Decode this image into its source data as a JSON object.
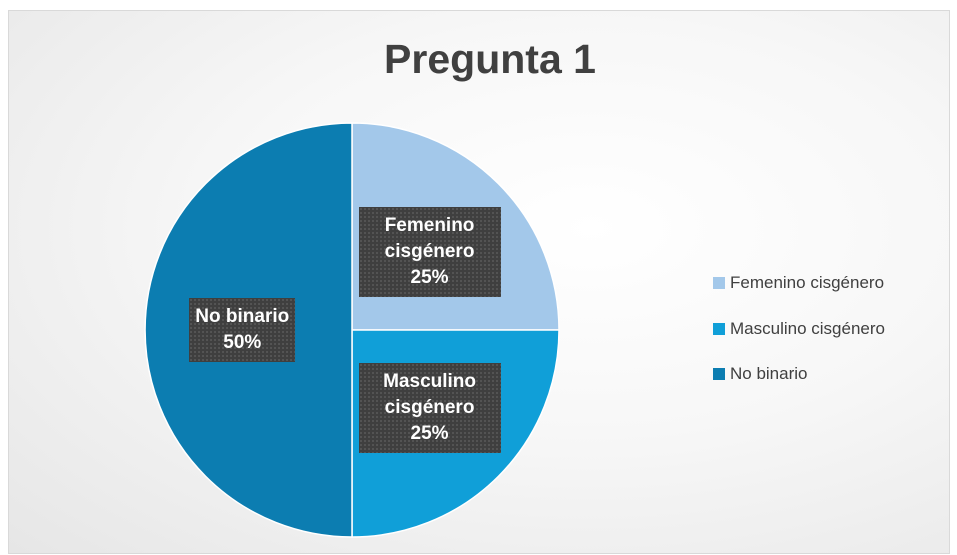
{
  "chart_data": {
    "type": "pie",
    "title": "Pregunta 1",
    "categories": [
      "Femenino cisgénero",
      "Masculino cisgénero",
      "No binario"
    ],
    "values": [
      25,
      25,
      50
    ],
    "value_labels": [
      "25%",
      "25%",
      "50%"
    ],
    "colors": [
      "#a3c8ea",
      "#109fd8",
      "#0c7db1"
    ],
    "legend": "right"
  }
}
